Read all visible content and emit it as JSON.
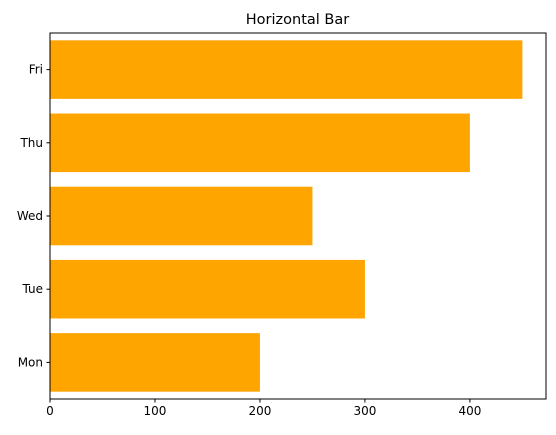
{
  "chart_data": {
    "type": "bar",
    "orientation": "horizontal",
    "title": "Horizontal Bar",
    "xlabel": "",
    "ylabel": "",
    "categories": [
      "Mon",
      "Tue",
      "Wed",
      "Thu",
      "Fri"
    ],
    "series": [
      {
        "values": [
          200,
          300,
          250,
          400,
          450
        ]
      }
    ],
    "xlim": [
      0,
      472.5
    ],
    "xticks": [
      0,
      100,
      200,
      300,
      400
    ],
    "bar_color": "#ffa500",
    "grid": false,
    "legend": "none"
  }
}
